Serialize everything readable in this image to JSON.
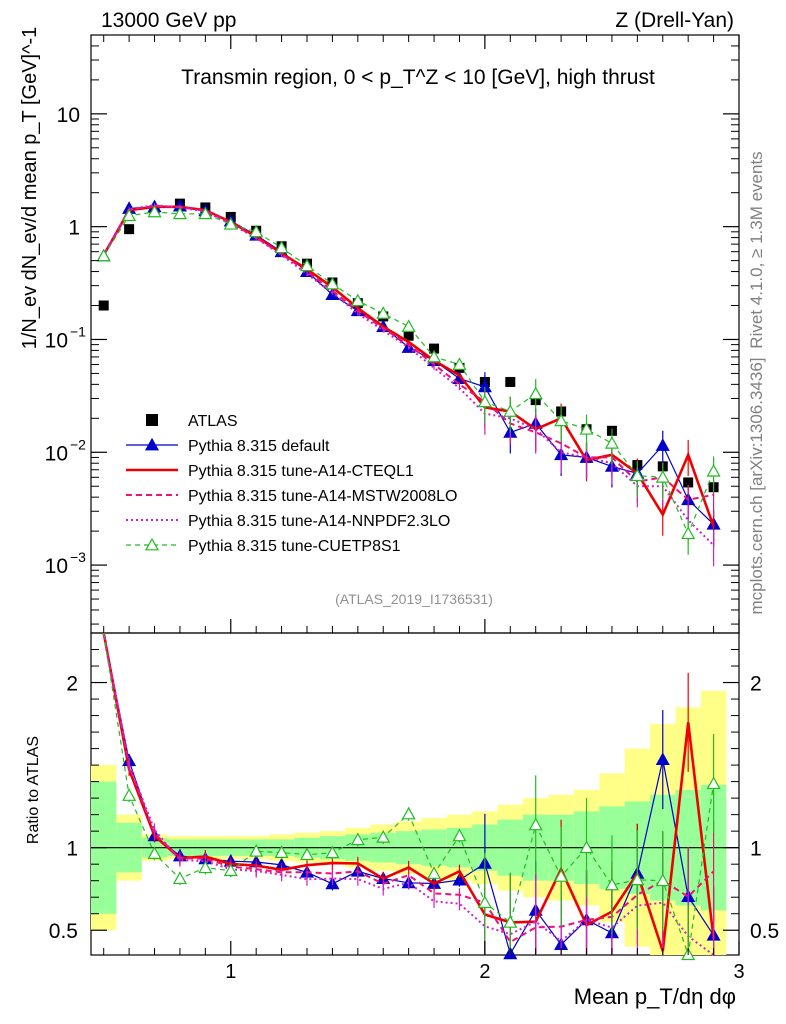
{
  "chart_data": {
    "type": "line",
    "top_left_label": "13000 GeV pp",
    "top_right_label": "Z (Drell-Yan)",
    "title": "Transmin region, 0 < p_T^Z < 10 [GeV], high thrust",
    "ylabel": "1/N_ev dN_ev/d mean p_T [GeV]^-1",
    "xlabel": "Mean p_T/dη dφ",
    "ratio_ylabel": "Ratio to ATLAS",
    "analysis_id": "(ATLAS_2019_I1736531)",
    "side_label_top": "Rivet 4.1.0, ≥ 1.3M events",
    "side_label_bottom": "mcplots.cern.ch [arXiv:1306.3436]",
    "xlim": [
      0.45,
      3.0
    ],
    "ylim_log": [
      0.00025,
      50
    ],
    "ratio_ylim": [
      0.35,
      2.3
    ],
    "x_ticks": [
      "1",
      "2",
      "3"
    ],
    "y_ticks": [
      "10^-3",
      "10^-2",
      "10^-1",
      "1",
      "10"
    ],
    "ratio_ticks": [
      "0.5",
      "1",
      "2"
    ],
    "x": [
      0.5,
      0.6,
      0.7,
      0.8,
      0.9,
      1.0,
      1.1,
      1.2,
      1.3,
      1.4,
      1.5,
      1.6,
      1.7,
      1.8,
      1.9,
      2.0,
      2.1,
      2.2,
      2.3,
      2.4,
      2.5,
      2.6,
      2.7,
      2.8,
      2.9
    ],
    "band_inner": [
      0.4,
      0.15,
      0.06,
      0.05,
      0.05,
      0.05,
      0.05,
      0.05,
      0.06,
      0.07,
      0.08,
      0.09,
      0.1,
      0.11,
      0.12,
      0.14,
      0.17,
      0.2,
      0.2,
      0.22,
      0.25,
      0.28,
      0.32,
      0.35,
      0.38
    ],
    "band_outer": [
      0.5,
      0.2,
      0.08,
      0.07,
      0.07,
      0.07,
      0.07,
      0.08,
      0.09,
      0.1,
      0.12,
      0.14,
      0.16,
      0.18,
      0.2,
      0.22,
      0.26,
      0.3,
      0.32,
      0.35,
      0.45,
      0.6,
      0.75,
      0.85,
      0.95
    ],
    "series": [
      {
        "name": "ATLAS",
        "color": "#000000",
        "values": [
          0.2,
          0.95,
          1.4,
          1.6,
          1.48,
          1.22,
          0.92,
          0.67,
          0.47,
          0.32,
          0.21,
          0.16,
          0.108,
          0.083,
          0.056,
          0.042,
          0.042,
          0.029,
          0.023,
          0.016,
          0.0155,
          0.0077,
          0.0075,
          0.0054,
          0.0049
        ]
      },
      {
        "name": "Pythia 8.315 default",
        "color": "#0000cc",
        "values": [
          0.55,
          1.45,
          1.5,
          1.52,
          1.38,
          1.12,
          0.84,
          0.6,
          0.4,
          0.25,
          0.18,
          0.13,
          0.085,
          0.065,
          0.045,
          0.038,
          0.015,
          0.018,
          0.0095,
          0.009,
          0.0075,
          0.0065,
          0.0115,
          0.0038,
          0.0023
        ]
      },
      {
        "name": "Pythia 8.315 tune-A14-CTEQL1",
        "color": "#ee0000",
        "values": [
          0.56,
          1.4,
          1.5,
          1.5,
          1.4,
          1.1,
          0.82,
          0.58,
          0.42,
          0.29,
          0.19,
          0.13,
          0.095,
          0.065,
          0.048,
          0.025,
          0.023,
          0.016,
          0.02,
          0.0085,
          0.0095,
          0.0065,
          0.0028,
          0.0095,
          0.0022
        ]
      },
      {
        "name": "Pythia 8.315 tune-A14-MSTW2008LO",
        "color": "#ee1177",
        "values": [
          0.56,
          1.42,
          1.52,
          1.5,
          1.38,
          1.08,
          0.8,
          0.57,
          0.4,
          0.27,
          0.18,
          0.125,
          0.09,
          0.06,
          0.04,
          0.028,
          0.018,
          0.015,
          0.012,
          0.009,
          0.009,
          0.0055,
          0.006,
          0.0038,
          0.0042
        ]
      },
      {
        "name": "Pythia 8.315 tune-A14-NNPDF2.3LO",
        "color": "#cc22cc",
        "values": [
          0.55,
          1.43,
          1.55,
          1.48,
          1.36,
          1.06,
          0.79,
          0.56,
          0.38,
          0.26,
          0.17,
          0.12,
          0.085,
          0.056,
          0.037,
          0.022,
          0.02,
          0.016,
          0.01,
          0.009,
          0.008,
          0.005,
          0.005,
          0.0025,
          0.0015
        ]
      },
      {
        "name": "Pythia 8.315 tune-CUETP8S1",
        "color": "#22bb22",
        "values": [
          0.55,
          1.25,
          1.35,
          1.3,
          1.3,
          1.05,
          0.9,
          0.65,
          0.45,
          0.31,
          0.22,
          0.17,
          0.13,
          0.07,
          0.06,
          0.028,
          0.023,
          0.033,
          0.019,
          0.016,
          0.012,
          0.0062,
          0.006,
          0.0019,
          0.0068
        ]
      }
    ]
  }
}
